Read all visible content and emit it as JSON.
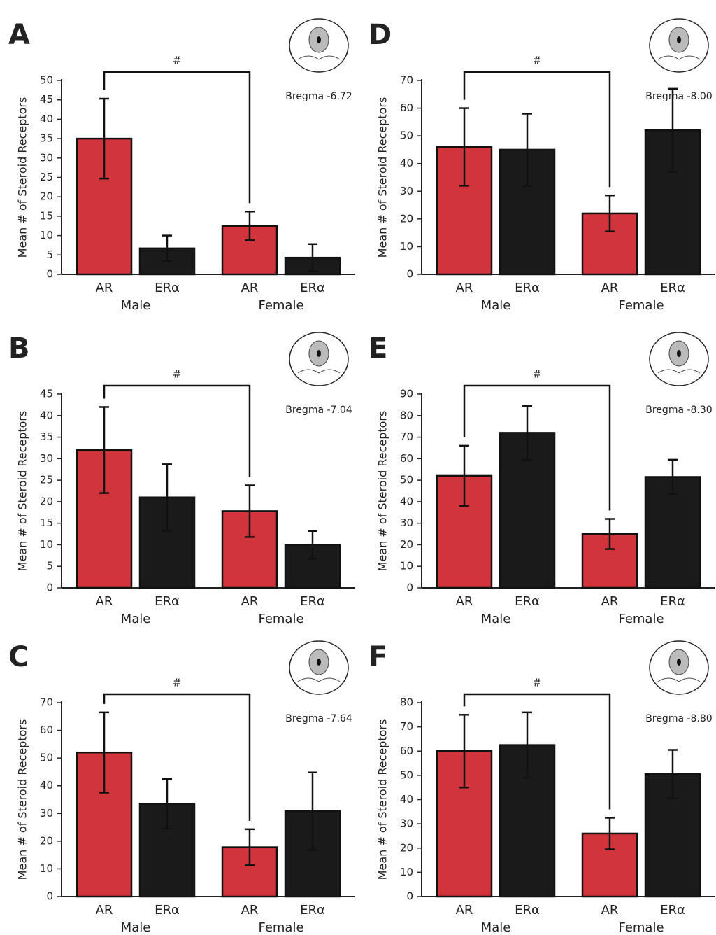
{
  "chart_data": [
    {
      "type": "bar",
      "panel_label": "A",
      "ylabel": "Mean # of Steroid Receptors",
      "categories": [
        "AR",
        "ERα",
        "AR",
        "ERα"
      ],
      "groups": [
        "Male",
        "Female"
      ],
      "values": [
        35,
        6.7,
        12.5,
        4.3
      ],
      "errors": [
        10.3,
        3.3,
        3.7,
        3.5
      ],
      "colors": [
        "#d1343a",
        "#1a1a1a",
        "#d1343a",
        "#1a1a1a"
      ],
      "ylim": [
        0,
        50
      ],
      "yticks": [
        0,
        5,
        10,
        15,
        20,
        25,
        30,
        35,
        40,
        45,
        50
      ],
      "annotation": "#",
      "bregma": "Bregma -6.72"
    },
    {
      "type": "bar",
      "panel_label": "B",
      "ylabel": "Mean # of Steroid Receptors",
      "categories": [
        "AR",
        "ERα",
        "AR",
        "ERα"
      ],
      "groups": [
        "Male",
        "Female"
      ],
      "values": [
        32,
        21,
        17.8,
        10
      ],
      "errors": [
        10,
        7.7,
        6,
        3.2
      ],
      "colors": [
        "#d1343a",
        "#1a1a1a",
        "#d1343a",
        "#1a1a1a"
      ],
      "ylim": [
        0,
        45
      ],
      "yticks": [
        0,
        5,
        10,
        15,
        20,
        25,
        30,
        35,
        40,
        45
      ],
      "annotation": "#",
      "bregma": "Bregma -7.04"
    },
    {
      "type": "bar",
      "panel_label": "C",
      "ylabel": "Mean # of Steroid Receptors",
      "categories": [
        "AR",
        "ERα",
        "AR",
        "ERα"
      ],
      "groups": [
        "Male",
        "Female"
      ],
      "values": [
        52,
        33.5,
        17.8,
        30.8
      ],
      "errors": [
        14.5,
        9,
        6.5,
        14
      ],
      "colors": [
        "#d1343a",
        "#1a1a1a",
        "#d1343a",
        "#1a1a1a"
      ],
      "ylim": [
        0,
        70
      ],
      "yticks": [
        0,
        10,
        20,
        30,
        40,
        50,
        60,
        70
      ],
      "annotation": "#",
      "bregma": "Bregma -7.64"
    },
    {
      "type": "bar",
      "panel_label": "D",
      "ylabel": "Mean # of Steroid Receptors",
      "categories": [
        "AR",
        "ERα",
        "AR",
        "ERα"
      ],
      "groups": [
        "Male",
        "Female"
      ],
      "values": [
        46,
        45,
        22,
        52
      ],
      "errors": [
        14,
        13,
        6.5,
        15
      ],
      "colors": [
        "#d1343a",
        "#1a1a1a",
        "#d1343a",
        "#1a1a1a"
      ],
      "ylim": [
        0,
        70
      ],
      "yticks": [
        0,
        10,
        20,
        30,
        40,
        50,
        60,
        70
      ],
      "annotation": "#",
      "bregma": "Bregma -8.00"
    },
    {
      "type": "bar",
      "panel_label": "E",
      "ylabel": "Mean # of Steroid Receptors",
      "categories": [
        "AR",
        "ERα",
        "AR",
        "ERα"
      ],
      "groups": [
        "Male",
        "Female"
      ],
      "values": [
        52,
        72,
        25,
        51.5
      ],
      "errors": [
        14,
        12.5,
        7,
        8
      ],
      "colors": [
        "#d1343a",
        "#1a1a1a",
        "#d1343a",
        "#1a1a1a"
      ],
      "ylim": [
        0,
        90
      ],
      "yticks": [
        0,
        10,
        20,
        30,
        40,
        50,
        60,
        70,
        80,
        90
      ],
      "annotation": "#",
      "bregma": "Bregma -8.30"
    },
    {
      "type": "bar",
      "panel_label": "F",
      "ylabel": "Mean # of Steroid Receptors",
      "categories": [
        "AR",
        "ERα",
        "AR",
        "ERα"
      ],
      "groups": [
        "Male",
        "Female"
      ],
      "values": [
        60,
        62.5,
        26,
        50.5
      ],
      "errors": [
        15,
        13.5,
        6.5,
        10
      ],
      "colors": [
        "#d1343a",
        "#1a1a1a",
        "#d1343a",
        "#1a1a1a"
      ],
      "ylim": [
        0,
        80
      ],
      "yticks": [
        0,
        10,
        20,
        30,
        40,
        50,
        60,
        70,
        80
      ],
      "annotation": "#",
      "bregma": "Bregma -8.80"
    }
  ]
}
